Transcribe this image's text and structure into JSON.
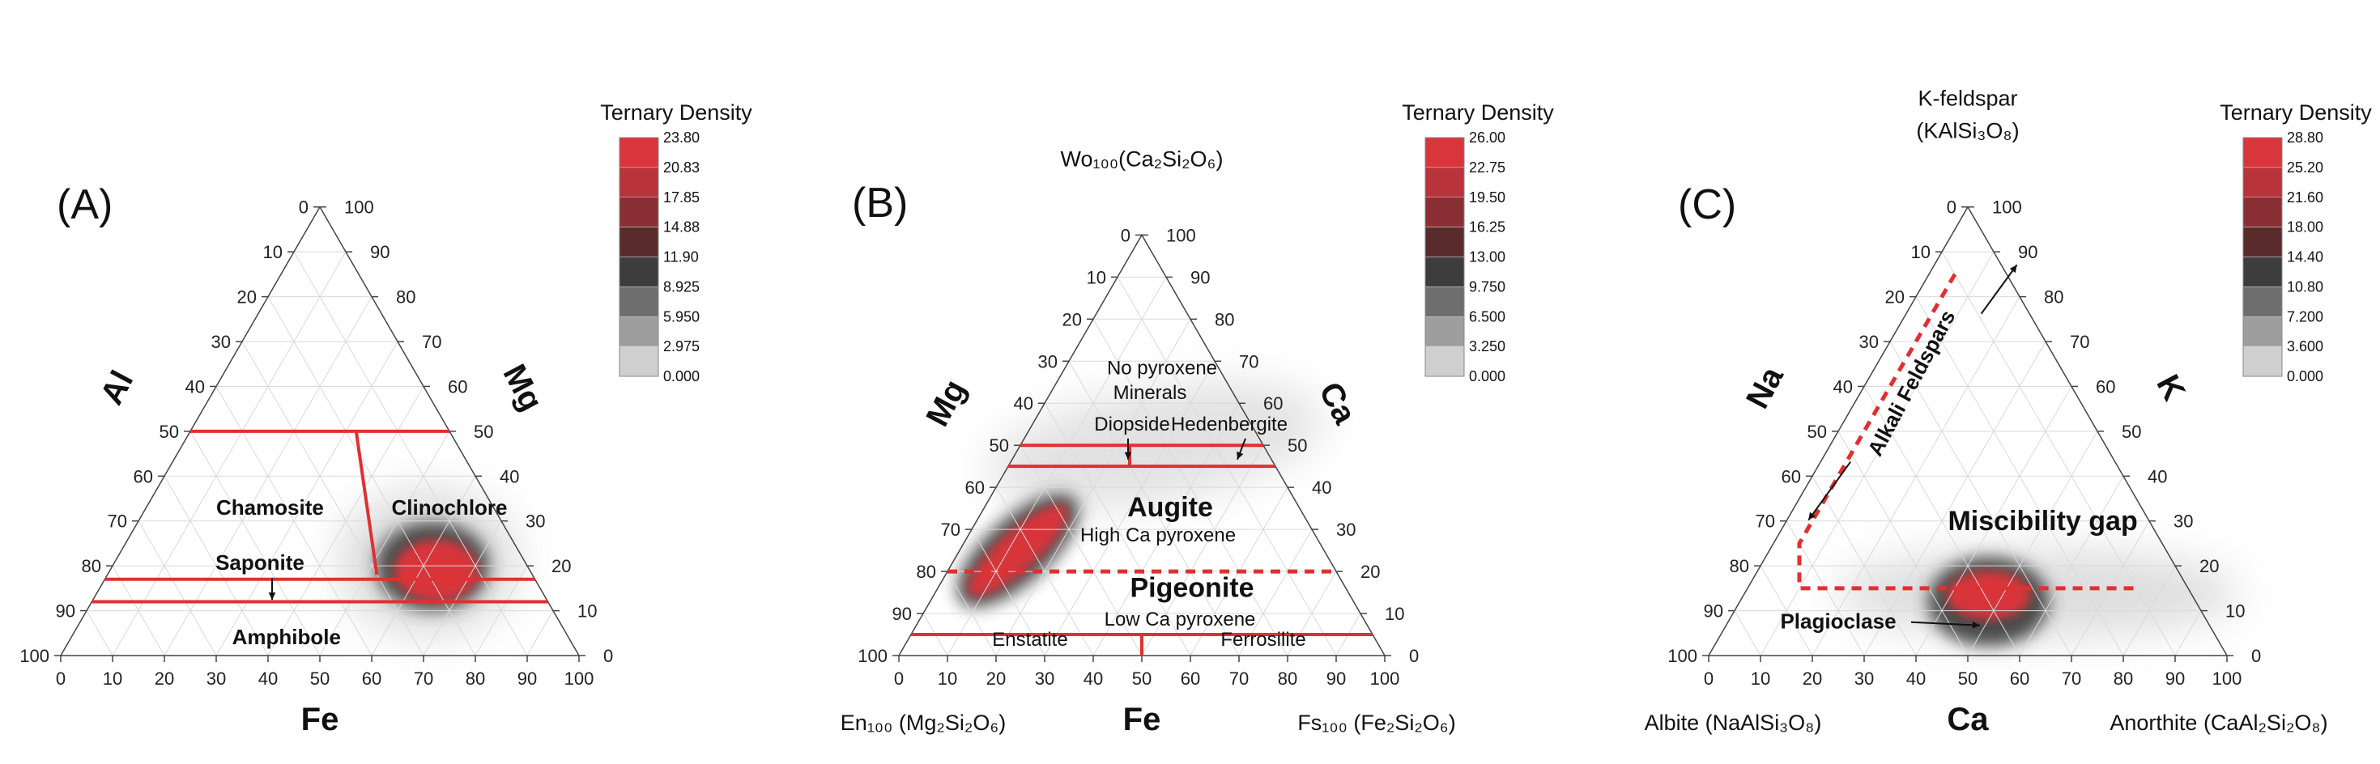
{
  "chart_data": [
    {
      "type": "ternary-density",
      "panel_label": "(A)",
      "title": "",
      "axes": {
        "left": "Al",
        "right": "Mg",
        "bottom": "Fe"
      },
      "corner_labels": {
        "top": "",
        "left": "",
        "right": ""
      },
      "ticks": [
        "0",
        "10",
        "20",
        "30",
        "40",
        "50",
        "60",
        "70",
        "80",
        "90",
        "100"
      ],
      "colorbar": {
        "title": "Ternary Density",
        "ticks": [
          "23.80",
          "20.83",
          "17.85",
          "14.88",
          "11.90",
          "8.925",
          "5.950",
          "2.975",
          "0.000"
        ]
      },
      "region_labels": [
        "Chamosite",
        "Clinochlore",
        "Saponite",
        "Amphibole"
      ],
      "density_peak": {
        "b": 63,
        "c": 19,
        "note": "maximum near Fe 60–70, Mg 15–25"
      },
      "boundaries": [
        "Mg = 50",
        "Fe = 52 (Mg 18–50)",
        "Mg = 17",
        "Mg = 12"
      ]
    },
    {
      "type": "ternary-density",
      "panel_label": "(B)",
      "title": "",
      "axes": {
        "left": "Mg",
        "right": "Ca",
        "bottom": "Fe"
      },
      "corner_labels": {
        "top": "Wo₁₀₀(Ca₂Si₂O₆)",
        "left": "En₁₀₀ (Mg₂Si₂O₆)",
        "right": "Fs₁₀₀ (Fe₂Si₂O₆)"
      },
      "ticks": [
        "0",
        "10",
        "20",
        "30",
        "40",
        "50",
        "60",
        "70",
        "80",
        "90",
        "100"
      ],
      "colorbar": {
        "title": "Ternary Density",
        "ticks": [
          "26.00",
          "22.75",
          "19.50",
          "16.25",
          "13.00",
          "9.750",
          "6.500",
          "3.250",
          "0.000"
        ]
      },
      "region_labels": [
        "No pyroxene",
        "Minerals",
        "Diopside",
        "Hedenbergite",
        "Augite",
        "High Ca pyroxene",
        "Pigeonite",
        "Low Ca pyroxene",
        "Enstatite",
        "Ferrosilite"
      ],
      "density_peak": {
        "b": 12,
        "c": 25,
        "note": "elongated maximum along Fe 5–20, Ca 20–35"
      },
      "boundaries": [
        "Ca = 50",
        "Ca = 45",
        "Fe = 25 (Ca 45–50)",
        "Ca = 20 (dashed)",
        "Ca = 5",
        "Fe = 50 (Ca 0–5)"
      ]
    },
    {
      "type": "ternary-density",
      "panel_label": "(C)",
      "title": "",
      "axes": {
        "left": "Na",
        "right": "K",
        "bottom": "Ca"
      },
      "corner_labels": {
        "top": "K-feldspar\n(KAlSi₃O₈)",
        "left": "Albite (NaAlSi₃O₈)",
        "right": "Anorthite (CaAl₂Si₂O₈)"
      },
      "ticks": [
        "0",
        "10",
        "20",
        "30",
        "40",
        "50",
        "60",
        "70",
        "80",
        "90",
        "100"
      ],
      "colorbar": {
        "title": "Ternary Density",
        "ticks": [
          "28.80",
          "25.20",
          "21.60",
          "18.00",
          "14.40",
          "10.80",
          "7.200",
          "3.600",
          "0.000"
        ]
      },
      "region_labels": [
        "Alkali Feldspars",
        "Miscibility gap",
        "Plagioclase"
      ],
      "density_peak": {
        "b": 48,
        "c": 12,
        "note": "maximum near Ca 40–55, K 8–16"
      },
      "boundaries": [
        "dashed path: (Ca 5, K 85) → (Ca 5, K 25) → (Ca 10, K 15) → (Ca 75, K 15)"
      ]
    }
  ],
  "colors": {
    "boundary": "#e03030",
    "density_high": "#d8363b",
    "density_mid": "#3d3d3d",
    "density_low": "#d8d8d8",
    "colorbar_bins": [
      "#d8363b",
      "#b8333a",
      "#8a2f33",
      "#5a2b2c",
      "#3d3d3d",
      "#6e6e6e",
      "#9e9e9e",
      "#cfcfcf",
      "#ffffff"
    ]
  }
}
